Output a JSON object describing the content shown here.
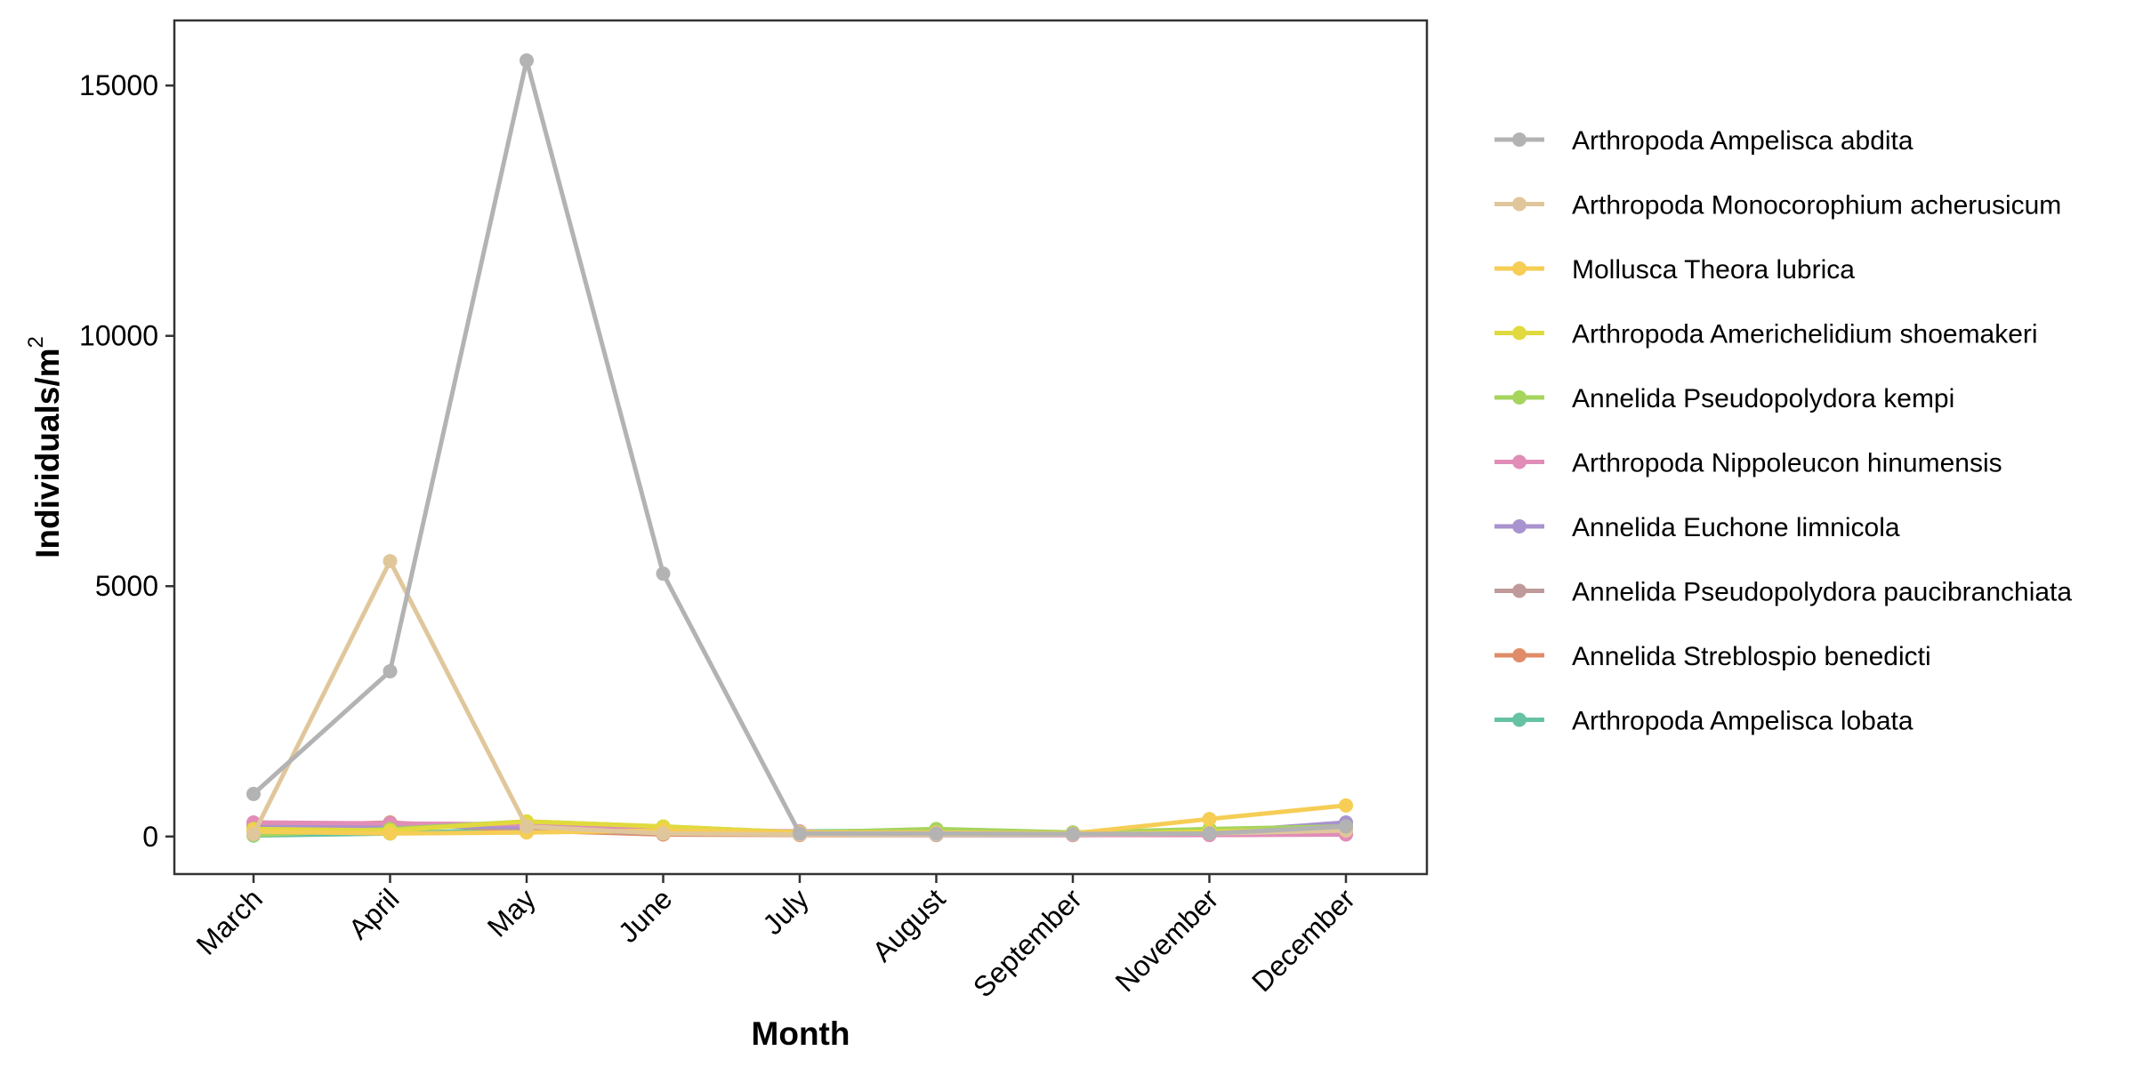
{
  "chart_data": {
    "type": "line",
    "title": "",
    "xlabel": "Month",
    "ylabel": "Individuals/m",
    "ylabel_superscript": "2",
    "categories": [
      "March",
      "April",
      "May",
      "June",
      "July",
      "August",
      "September",
      "November",
      "December"
    ],
    "ylim": [
      -750,
      16300
    ],
    "yticks": [
      0,
      5000,
      10000,
      15000
    ],
    "grid": false,
    "legend_position": "right",
    "series": [
      {
        "name": "Arthropoda Ampelisca abdita",
        "color": "#b3b3b3",
        "values": [
          850,
          3300,
          15500,
          5250,
          60,
          60,
          50,
          60,
          200
        ]
      },
      {
        "name": "Arthropoda Monocorophium acherusicum",
        "color": "#e0c79b",
        "values": [
          50,
          5500,
          200,
          60,
          40,
          40,
          40,
          60,
          120
        ]
      },
      {
        "name": "Mollusca Theora lubrica",
        "color": "#f6cd55",
        "values": [
          100,
          60,
          80,
          120,
          80,
          80,
          60,
          350,
          620
        ]
      },
      {
        "name": "Arthropoda Americhelidium shoemakeri",
        "color": "#e1da3e",
        "values": [
          150,
          120,
          300,
          200,
          80,
          60,
          40,
          100,
          150
        ]
      },
      {
        "name": "Annelida Pseudopolydora kempi",
        "color": "#a6d45d",
        "values": [
          30,
          150,
          300,
          200,
          80,
          150,
          80,
          150,
          200
        ]
      },
      {
        "name": "Arthropoda Nippoleucon hinumensis",
        "color": "#e18db8",
        "values": [
          280,
          260,
          240,
          150,
          100,
          60,
          30,
          30,
          40
        ]
      },
      {
        "name": "Annelida Euchone limnicola",
        "color": "#a893cf",
        "values": [
          180,
          200,
          200,
          100,
          50,
          40,
          30,
          80,
          280
        ]
      },
      {
        "name": "Annelida Pseudopolydora paucibranchiata",
        "color": "#c09a9a",
        "values": [
          220,
          270,
          150,
          60,
          40,
          30,
          30,
          40,
          60
        ]
      },
      {
        "name": "Annelida Streblospio benedicti",
        "color": "#e08c68",
        "values": [
          200,
          280,
          120,
          40,
          30,
          30,
          30,
          40,
          50
        ]
      },
      {
        "name": "Arthropoda Ampelisca lobata",
        "color": "#66c2a4",
        "values": [
          20,
          60,
          150,
          120,
          100,
          120,
          80,
          120,
          150
        ]
      }
    ]
  }
}
